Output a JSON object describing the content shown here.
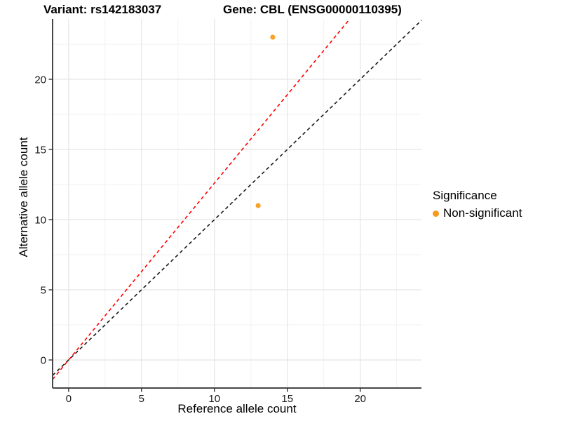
{
  "titles": {
    "variant": "Variant: rs142183037",
    "gene": "Gene: CBL (ENSG00000110395)"
  },
  "legend": {
    "title": "Significance",
    "entries": [
      {
        "label": "Non-significant",
        "color": "#F8991D"
      }
    ]
  },
  "chart_data": {
    "type": "scatter",
    "title": "Variant: rs142183037 | Gene: CBL (ENSG00000110395)",
    "xlabel": "Reference allele count",
    "ylabel": "Alternative allele count",
    "xlim": [
      -1.1,
      24.2
    ],
    "ylim": [
      -2.0,
      24.3
    ],
    "x_ticks": [
      0,
      5,
      10,
      15,
      20
    ],
    "y_ticks": [
      0,
      5,
      10,
      15,
      20
    ],
    "grid": {
      "major": true,
      "minor": true,
      "major_color": "#E5E5E5",
      "minor_color": "#F1F1F1"
    },
    "legend_position": "right",
    "series": [
      {
        "name": "Non-significant",
        "color": "#F9A22B",
        "point_radius": 3.6,
        "points": [
          {
            "x": 14,
            "y": 23
          },
          {
            "x": 13,
            "y": 11
          }
        ]
      }
    ],
    "reference_lines": [
      {
        "name": "identity-line",
        "slope": 1.0,
        "intercept": 0,
        "color": "#1A1A1A",
        "dash": "5,4"
      },
      {
        "name": "allelic-ratio-line",
        "slope": 1.26,
        "intercept": 0,
        "color": "#FF0000",
        "dash": "5,4"
      }
    ],
    "axis": {
      "line_color": "#474747",
      "tick_color": "#333333"
    }
  }
}
